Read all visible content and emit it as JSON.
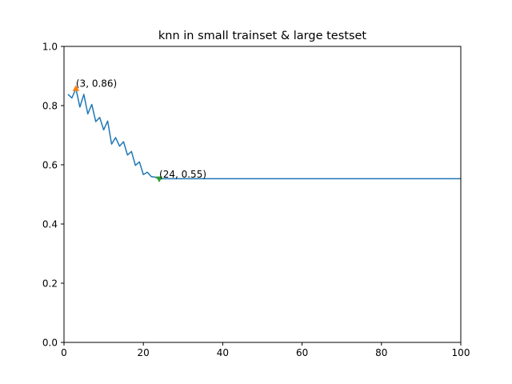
{
  "chart_data": {
    "type": "line",
    "title": "knn in small trainset & large testset",
    "xlabel": "",
    "ylabel": "",
    "xlim": [
      0,
      100
    ],
    "ylim": [
      0.0,
      1.0
    ],
    "xticks": [
      0,
      20,
      40,
      60,
      80,
      100
    ],
    "xtick_labels": [
      "0",
      "20",
      "40",
      "60",
      "80",
      "100"
    ],
    "yticks": [
      0.0,
      0.2,
      0.4,
      0.6,
      0.8,
      1.0
    ],
    "ytick_labels": [
      "0.0",
      "0.2",
      "0.4",
      "0.6",
      "0.8",
      "1.0"
    ],
    "grid": false,
    "series": [
      {
        "color": "#1f77b4",
        "x": [
          1,
          2,
          3,
          4,
          5,
          6,
          7,
          8,
          9,
          10,
          11,
          12,
          13,
          14,
          15,
          16,
          17,
          18,
          19,
          20,
          21,
          22,
          23,
          24,
          25,
          26,
          27,
          28,
          29,
          30,
          31,
          32,
          33,
          34,
          35,
          36,
          37,
          38,
          39,
          40,
          41,
          42,
          43,
          44,
          45,
          46,
          47,
          48,
          49,
          50,
          51,
          52,
          53,
          54,
          55,
          56,
          57,
          58,
          59,
          60,
          61,
          62,
          63,
          64,
          65,
          66,
          67,
          68,
          69,
          70,
          71,
          72,
          73,
          74,
          75,
          76,
          77,
          78,
          79,
          80,
          81,
          82,
          83,
          84,
          85,
          86,
          87,
          88,
          89,
          90,
          91,
          92,
          93,
          94,
          95,
          96,
          97,
          98,
          99,
          100
        ],
        "y": [
          0.838,
          0.826,
          0.858,
          0.795,
          0.838,
          0.772,
          0.804,
          0.746,
          0.76,
          0.718,
          0.748,
          0.67,
          0.692,
          0.663,
          0.678,
          0.633,
          0.645,
          0.598,
          0.61,
          0.567,
          0.575,
          0.56,
          0.558,
          0.552,
          0.553,
          0.553,
          0.553,
          0.553,
          0.553,
          0.553,
          0.553,
          0.553,
          0.553,
          0.553,
          0.553,
          0.553,
          0.553,
          0.553,
          0.553,
          0.553,
          0.553,
          0.553,
          0.553,
          0.553,
          0.553,
          0.553,
          0.553,
          0.553,
          0.553,
          0.553,
          0.553,
          0.553,
          0.553,
          0.553,
          0.553,
          0.553,
          0.553,
          0.553,
          0.553,
          0.553,
          0.553,
          0.553,
          0.553,
          0.553,
          0.553,
          0.553,
          0.553,
          0.553,
          0.553,
          0.553,
          0.553,
          0.553,
          0.553,
          0.553,
          0.553,
          0.553,
          0.553,
          0.553,
          0.553,
          0.553,
          0.553,
          0.553,
          0.553,
          0.553,
          0.553,
          0.553,
          0.553,
          0.553,
          0.553,
          0.553,
          0.553,
          0.553,
          0.553,
          0.553,
          0.553,
          0.553,
          0.553,
          0.553,
          0.553,
          0.553
        ]
      }
    ],
    "annotations": [
      {
        "text": "(3, 0.86)",
        "x": 3,
        "y": 0.858,
        "marker": "triangle-up",
        "color": "#ff7f0e"
      },
      {
        "text": "(24, 0.55)",
        "x": 24,
        "y": 0.552,
        "marker": "triangle-down",
        "color": "#2ca02c"
      }
    ]
  }
}
